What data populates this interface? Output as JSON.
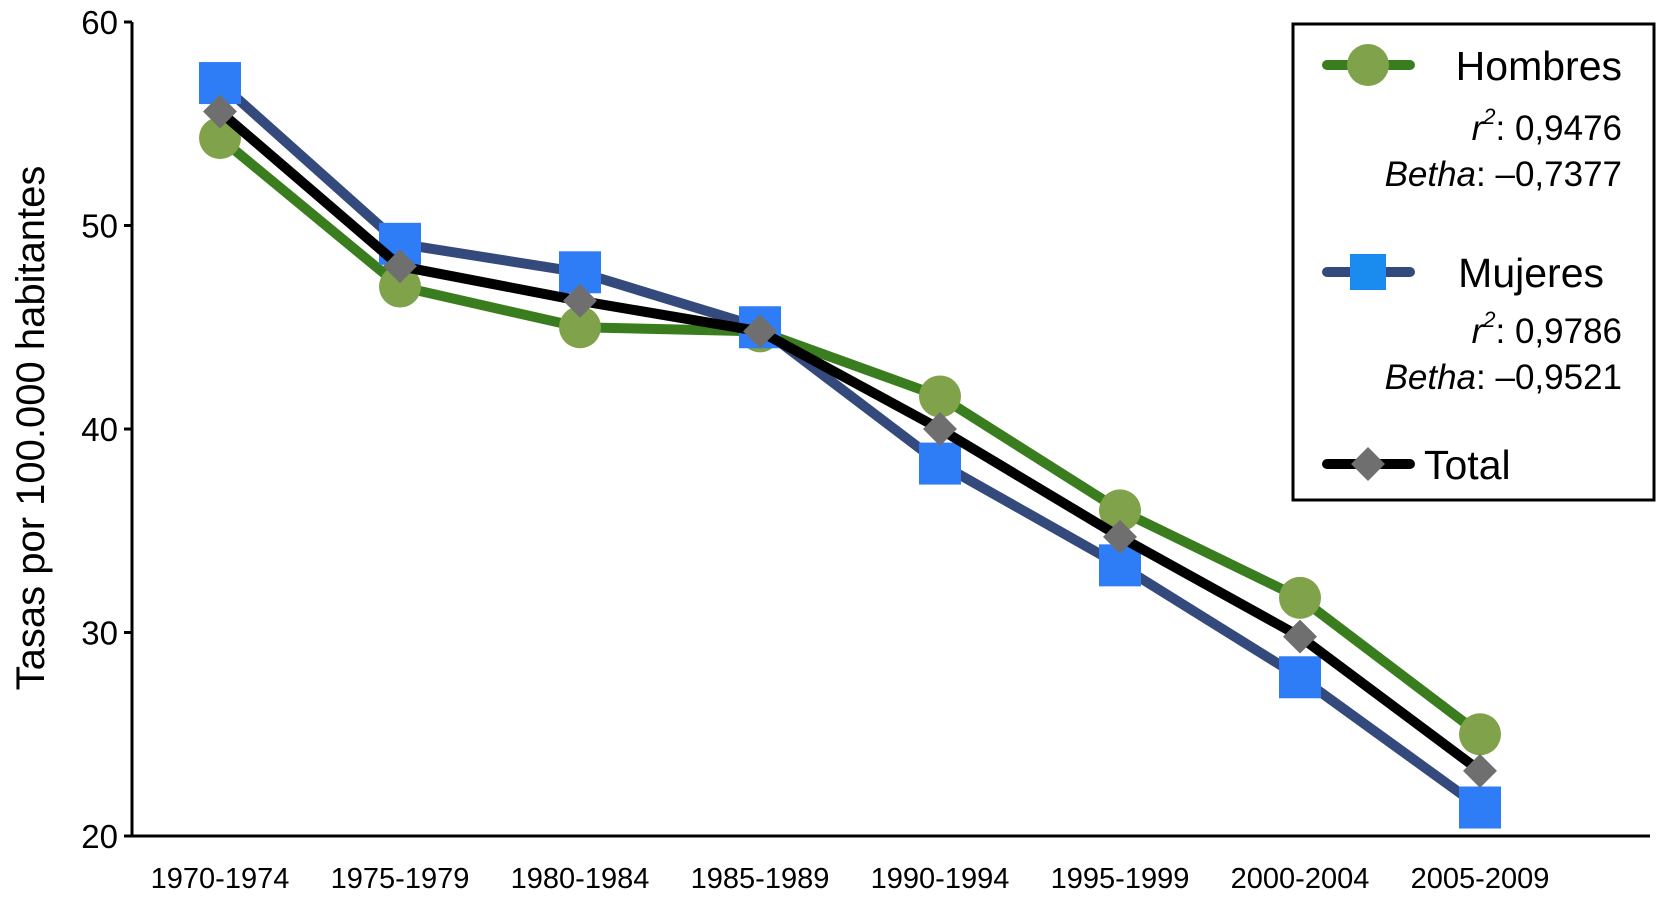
{
  "chart_data": {
    "type": "line",
    "title": "",
    "xlabel": "",
    "ylabel": "Tasas por 100.000 habitantes",
    "ylim": [
      20,
      60
    ],
    "yticks": [
      "20",
      "30",
      "40",
      "50",
      "60"
    ],
    "categories": [
      "1970-1974",
      "1975-1979",
      "1980-1984",
      "1985-1989",
      "1990-1994",
      "1995-1999",
      "2000-2004",
      "2005-2009"
    ],
    "legend_position": "top-right",
    "series": [
      {
        "name": "Hombres",
        "marker": "circle",
        "line_color": "#3a7d1e",
        "marker_color": "#7fa24a",
        "values": [
          54.3,
          47.0,
          45.0,
          44.8,
          41.6,
          36.0,
          31.7,
          25.0
        ],
        "stats": {
          "r2_label": "r",
          "r2_sup": "2",
          "r2_value": ": 0,9476",
          "betha_label": "Betha",
          "betha_value": ": –0,7377"
        }
      },
      {
        "name": "Mujeres",
        "marker": "square",
        "line_color": "#34497c",
        "marker_color": "#2f7df6",
        "values": [
          57.0,
          49.1,
          47.7,
          45.0,
          38.3,
          33.3,
          27.8,
          21.4
        ],
        "stats": {
          "r2_label": "r",
          "r2_sup": "2",
          "r2_value": ": 0,9786",
          "betha_label": "Betha",
          "betha_value": ": –0,9521"
        }
      },
      {
        "name": "Total",
        "marker": "diamond",
        "line_color": "#000000",
        "marker_color": "#6f6f6f",
        "values": [
          55.6,
          48.0,
          46.3,
          44.8,
          40.0,
          34.7,
          29.8,
          23.2
        ]
      }
    ]
  }
}
